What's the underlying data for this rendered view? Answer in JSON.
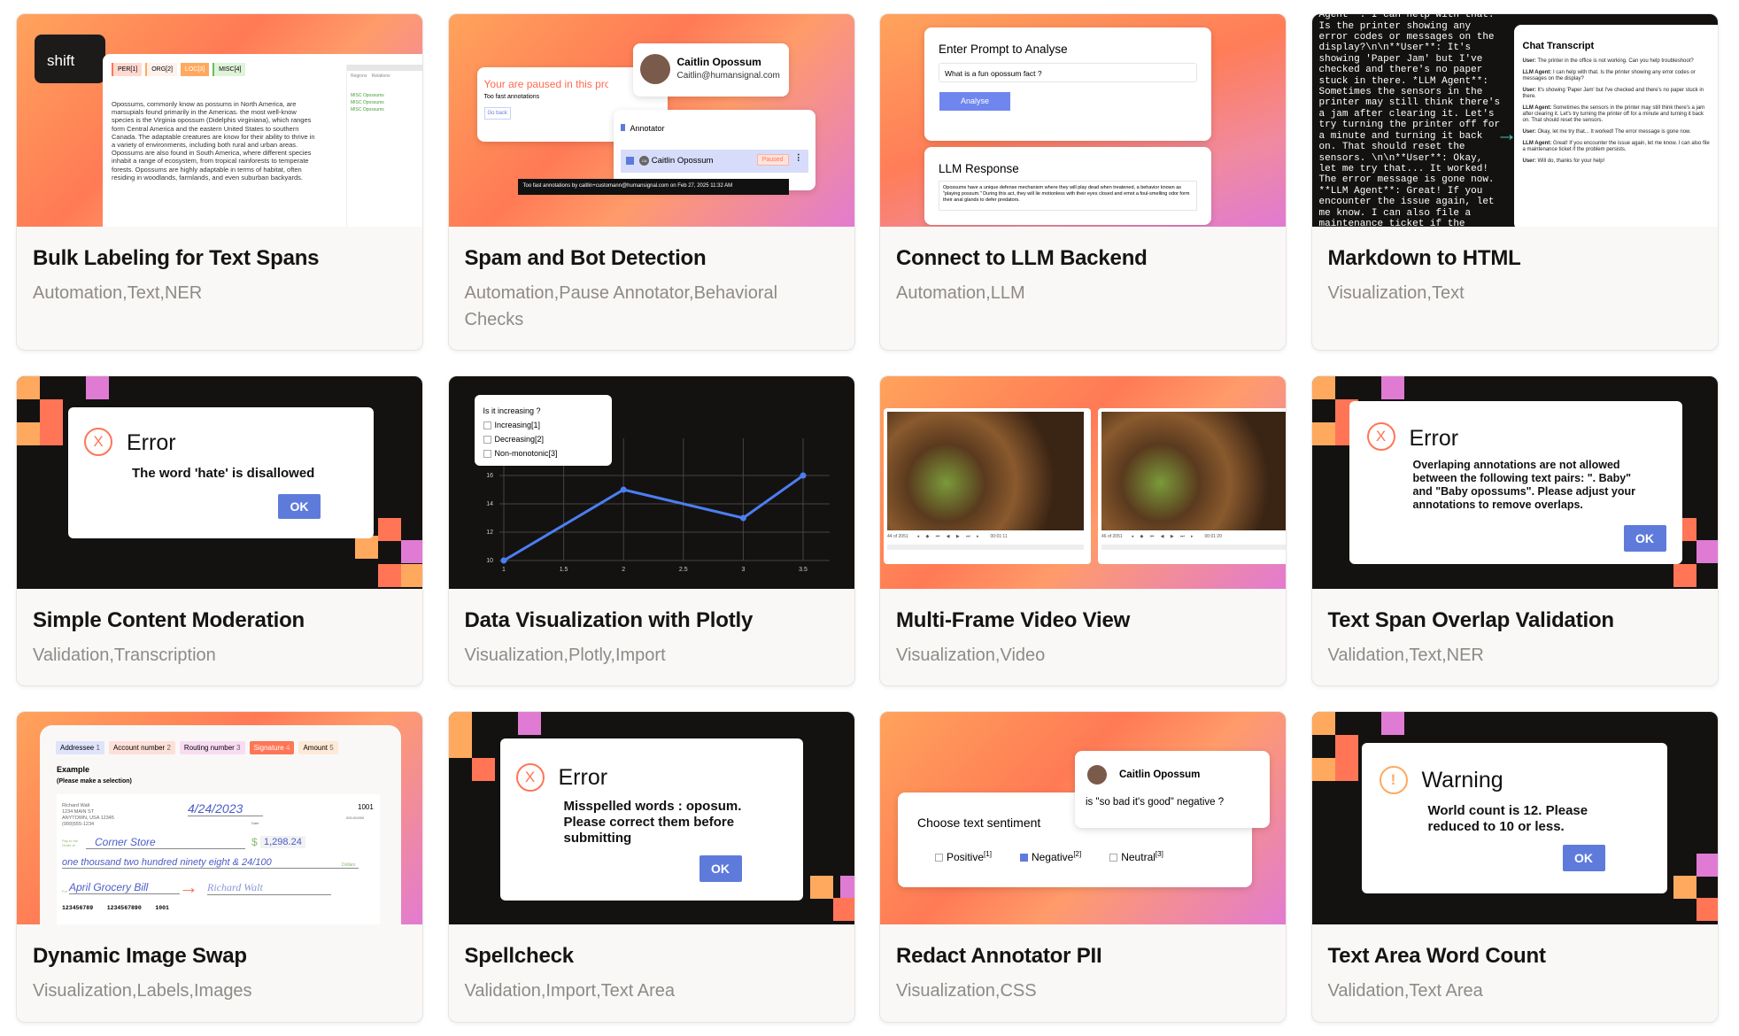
{
  "cards": [
    {
      "title": "Bulk Labeling for Text Spans",
      "tags": "Automation,Text,NER",
      "thumb": {
        "key": "shift",
        "labels": [
          "PER[1]",
          "ORG[2]",
          "LOC[3]",
          "MISC[4]"
        ],
        "tabs": [
          "Regions",
          "Relations"
        ],
        "regions": [
          "MISC Opossums",
          "MISC Opossums",
          "MISC Opossums"
        ],
        "text": "Opossums, commonly know as possums in North America, are marsupials found primarily in the Americas. the most well-know species is the Virginia opossum (Didelphis virginiana), which ranges form Central America and the eastern United States to southern Canada. The adaptable creatures are know for their ability to thrive in a variety of environments, including both rural and urban areas. Opossums are also found in South America, where different species inhabit a range of ecosystem, from tropical rainforests to temperate forests. Opossums are highly adaptable in terms of habitat, often residing in woodlands, farmlands, and even suburban backyards."
      }
    },
    {
      "title": "Spam and Bot Detection",
      "tags": "Automation,Pause Annotator,Behavioral Checks",
      "thumb": {
        "paused": "Your are paused in this proje",
        "reason": "Too fast annotations",
        "go_back": "Go back",
        "user_name": "Caitlin Opossum",
        "user_email": "Caitlin@humansignal.com",
        "role": "Annotator",
        "row_name": "Caitlin Opossum",
        "row_initials": "CA",
        "badge": "Paused",
        "tooltip": "Too fast annotations by caitlin+customann@humansignal.com on Feb 27, 2025 11:32 AM"
      }
    },
    {
      "title": "Connect to LLM Backend",
      "tags": "Automation,LLM",
      "thumb": {
        "prompt_title": "Enter Prompt to Analyse",
        "prompt_value": "What is a fun opossum fact ?",
        "analyse": "Analyse",
        "response_title": "LLM Response",
        "response": "Opossums have a unique defense mechanism where they will play dead when treatened, a behavior known as \"playing possum.\" During this act, they will lie motionless with their eyes closed and emot a foul-smelling odor form their anal glands to defer predators."
      }
    },
    {
      "title": "Markdown to HTML",
      "tags": "Visualization,Text",
      "thumb": {
        "markdown": "**User**: The printer in the office is not working. Can you help troubleshoot? **LLM Agent**: I can help with that. Is the printer showing any error codes or messages on the display?\\n\\n**User**: It's showing 'Paper Jam' but I've checked and there's no paper stuck in there. *LLM Agent**: Sometimes the sensors in the printer may still think there's a jam after clearing it. Let's try turning the printer off for a minute and turning it back on. That should reset the sensors. \\n\\n**User**: Okay, let me try that... It worked! The error message is gone now. **LLM Agent**: Great! If you encounter the issue again, let me know. I can also file a maintenance ticket if the problem persists. **User**: Will do, thanks for your help!\"",
        "chat_title": "Chat Transcript",
        "chat": [
          {
            "who": "User:",
            "msg": "The printer in the office is not working. Can you help troubleshoot?"
          },
          {
            "who": "LLM Agent:",
            "msg": "I can help with that. Is the printer showing any error codes or messages on the display?"
          },
          {
            "who": "User:",
            "msg": "It's showing 'Paper Jam' but I've checked and there's no paper stuck in there."
          },
          {
            "who": "LLM Agent:",
            "msg": "Sometimes the sensors in the printer may still think there's a jam after clearing it. Let's try turning the printer off for a minute and turning it back on. That should reset the sensors."
          },
          {
            "who": "User:",
            "msg": "Okay, let me try that... It worked! The error message is gone now."
          },
          {
            "who": "LLM Agent:",
            "msg": "Great! If you encounter the issue again, let me know. I can also file a maintenance ticket if the problem persists."
          },
          {
            "who": "User:",
            "msg": "Will do, thanks for your help!"
          }
        ]
      }
    },
    {
      "title": "Simple Content Moderation",
      "tags": "Validation,Transcription",
      "thumb": {
        "heading": "Error",
        "message": "The word 'hate' is disallowed",
        "ok": "OK"
      }
    },
    {
      "title": "Data Visualization with Plotly",
      "tags": "Visualization,Plotly,Import",
      "thumb": {
        "question": "Is it increasing ?",
        "options": [
          "Increasing[1]",
          "Decreasing[2]",
          "Non-monotonic[3]"
        ]
      }
    },
    {
      "title": "Multi-Frame Video View",
      "tags": "Visualization,Video",
      "thumb": {
        "frames": [
          {
            "frame": "44 of 2051",
            "time": "00:01:11"
          },
          {
            "frame": "46 of 2051",
            "time": "00:01:20"
          }
        ]
      }
    },
    {
      "title": "Text Span Overlap Validation",
      "tags": "Validation,Text,NER",
      "thumb": {
        "heading": "Error",
        "message": "Overlaping annotations are not allowed between the following text pairs: \". Baby\" and \"Baby opossums\". Please adjust your annotations to remove overlaps.",
        "ok": "OK"
      }
    },
    {
      "title": "Dynamic Image Swap",
      "tags": "Visualization,Labels,Images",
      "thumb": {
        "labels": [
          {
            "t": "Addressee",
            "n": "1",
            "c": "#dfe3fb"
          },
          {
            "t": "Account number",
            "n": "2",
            "c": "#fde0d8"
          },
          {
            "t": "Routing number",
            "n": "3",
            "c": "#f8dcf2"
          },
          {
            "t": "Signature",
            "n": "4",
            "c": "#ff7556"
          },
          {
            "t": "Amount",
            "n": "5",
            "c": "#fde9d6"
          }
        ],
        "example": "Example",
        "hint": "(Please make a selection)",
        "addr": [
          "Richard Walt",
          "1234 MAIN ST",
          "ANYTOWN, USA 12345",
          "(999)555-1234"
        ],
        "date": "4/24/2023",
        "date_label": "Date",
        "check_no": "1001",
        "routing_small": "000-00/000",
        "payto": "Pay to the Order of",
        "payee": "Corner Store",
        "amount": "1,298.24",
        "words": "one thousand two hundred ninety eight & 24/100",
        "dollars": "Dollars",
        "for": "For",
        "memo": "April Grocery Bill",
        "signature": "Richard Walt",
        "micr": "123456789    1234567890    1001"
      }
    },
    {
      "title": "Spellcheck",
      "tags": "Validation,Import,Text Area",
      "thumb": {
        "heading": "Error",
        "message": "Misspelled words : oposum. Please correct them before submitting",
        "ok": "OK"
      }
    },
    {
      "title": "Redact Annotator PII",
      "tags": "Visualization,CSS",
      "thumb": {
        "user_name": "Caitlin Opossum",
        "question": "is \"so bad it's good\" negative ?",
        "prompt": "Choose text sentiment",
        "options": [
          {
            "t": "Positive",
            "s": "[1]",
            "checked": false
          },
          {
            "t": "Negative",
            "s": "[2]",
            "checked": true
          },
          {
            "t": "Neutral",
            "s": "[3]",
            "checked": false
          }
        ]
      }
    },
    {
      "title": "Text Area Word Count",
      "tags": "Validation,Text Area",
      "thumb": {
        "heading": "Warning",
        "message": "World count is 12. Please reduced to 10 or less.",
        "ok": "OK"
      }
    }
  ],
  "plot": {
    "type": "line",
    "x": [
      1,
      2,
      3,
      3.5
    ],
    "y": [
      10,
      15,
      13,
      16
    ],
    "xticks": [
      "1",
      "1.5",
      "2",
      "2.5",
      "3",
      "3.5"
    ],
    "yticks": [
      "10",
      "12",
      "14",
      "16"
    ],
    "xlim": [
      1,
      3.5
    ],
    "ylim": [
      10,
      16
    ],
    "color": "#4c7ef3"
  },
  "colors": {
    "orange": "#ffa95f",
    "pink": "#e07bd3",
    "coral": "#ff7556",
    "dark": "#141210",
    "ok_blue": "#5e7bdc"
  }
}
